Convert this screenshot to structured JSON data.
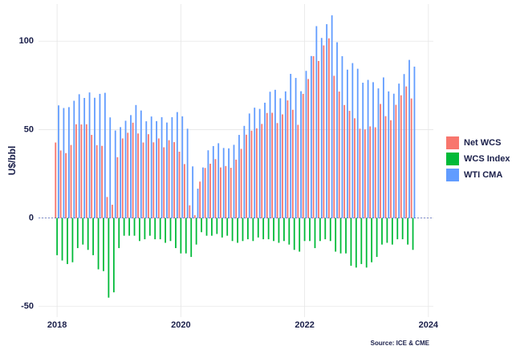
{
  "chart_data": {
    "type": "bar",
    "y_label": "U$/bbl",
    "source": "Source: ICE & CME",
    "x": [
      2018.0,
      2018.083,
      2018.167,
      2018.25,
      2018.333,
      2018.417,
      2018.5,
      2018.583,
      2018.667,
      2018.75,
      2018.833,
      2018.917,
      2019.0,
      2019.083,
      2019.167,
      2019.25,
      2019.333,
      2019.417,
      2019.5,
      2019.583,
      2019.667,
      2019.75,
      2019.833,
      2019.917,
      2020.0,
      2020.083,
      2020.167,
      2020.25,
      2020.333,
      2020.417,
      2020.5,
      2020.583,
      2020.667,
      2020.75,
      2020.833,
      2020.917,
      2021.0,
      2021.083,
      2021.167,
      2021.25,
      2021.333,
      2021.417,
      2021.5,
      2021.583,
      2021.667,
      2021.75,
      2021.833,
      2021.917,
      2022.0,
      2022.083,
      2022.167,
      2022.25,
      2022.333,
      2022.417,
      2022.5,
      2022.583,
      2022.667,
      2022.75,
      2022.833,
      2022.917,
      2023.0,
      2023.083,
      2023.167,
      2023.25,
      2023.333,
      2023.417,
      2023.5,
      2023.583,
      2023.667,
      2023.75
    ],
    "series": [
      {
        "name": "Net WCS",
        "color": "#F8766D",
        "values": [
          42.7,
          38.2,
          36.7,
          41.3,
          53,
          52.9,
          53,
          47,
          41.2,
          40.8,
          11.9,
          7.5,
          34.4,
          45,
          48.2,
          53.9,
          47.8,
          42.7,
          47.4,
          42.8,
          45,
          40,
          44,
          42.9,
          37.5,
          30.5,
          7.2,
          1.6,
          20.6,
          28.3,
          30.7,
          33.3,
          28.6,
          29.4,
          28.4,
          33,
          39.1,
          47.1,
          49.4,
          50.7,
          53.2,
          59.4,
          59.5,
          53.7,
          58.6,
          66.5,
          61.2,
          52.7,
          70.2,
          78.6,
          91.5,
          88.8,
          97.6,
          101.6,
          80.4,
          71.5,
          63.9,
          60.6,
          56.4,
          50.5,
          50.1,
          51.8,
          51.3,
          64.5,
          57.6,
          55.3,
          64,
          69.4,
          74.4,
          67.6
        ]
      },
      {
        "name": "WCS Index",
        "color": "#00BA38",
        "values": [
          -21,
          -24,
          -26,
          -25,
          -17,
          -15,
          -18,
          -21,
          -29,
          -30,
          -45,
          -42,
          -17,
          -10,
          -10,
          -10,
          -13,
          -12,
          -10,
          -12,
          -12,
          -14,
          -13,
          -17,
          -20,
          -20,
          -22,
          -15,
          -8,
          -10,
          -10,
          -9,
          -11,
          -10,
          -13,
          -14,
          -13,
          -12,
          -13,
          -11,
          -12,
          -12,
          -13,
          -14,
          -13,
          -15,
          -18,
          -19,
          -13,
          -13,
          -17,
          -13,
          -12,
          -13,
          -19,
          -20,
          -20,
          -27,
          -28,
          -26,
          -28,
          -25,
          -22,
          -15,
          -14,
          -15,
          -12,
          -12,
          -15,
          -18
        ]
      },
      {
        "name": "WTI CMA",
        "color": "#619CFF",
        "values": [
          63.7,
          62.2,
          62.7,
          66.3,
          70,
          67.9,
          71,
          68,
          70.2,
          70.8,
          56.9,
          49.5,
          51.4,
          55,
          58.2,
          63.9,
          60.8,
          54.7,
          57.4,
          54.8,
          57,
          54,
          57,
          59.9,
          57.5,
          50.5,
          29.2,
          16.6,
          28.6,
          38.3,
          40.7,
          42.3,
          39.6,
          39.4,
          41.4,
          47,
          52.1,
          59.1,
          62.4,
          61.7,
          65.2,
          71.4,
          72.5,
          67.7,
          71.6,
          81.5,
          79.2,
          71.7,
          83.2,
          91.6,
          108.5,
          101.8,
          109.6,
          114.6,
          99.4,
          91.5,
          83.9,
          87.6,
          84.4,
          76.5,
          78.1,
          76.8,
          73.3,
          79.5,
          71.6,
          70.3,
          76,
          81.4,
          89.4,
          85.6
        ]
      }
    ],
    "xlim": [
      2017.7,
      2024.08
    ],
    "xticks": [
      2018,
      2020,
      2022,
      2024
    ],
    "ylim": [
      -56,
      121
    ],
    "yticks": [
      -50,
      0,
      50,
      100
    ],
    "grid": true,
    "legend": "right"
  }
}
